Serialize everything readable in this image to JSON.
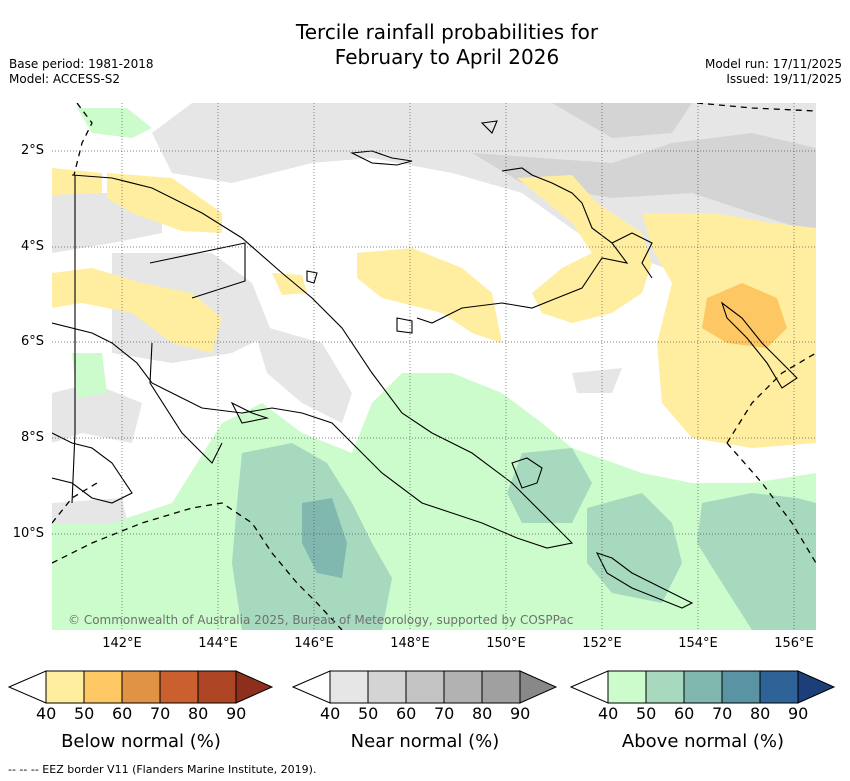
{
  "title_line1": "Tercile rainfall probabilities for",
  "title_line2": "February to April 2026",
  "base_period": "Base period: 1981-2018",
  "model": "Model: ACCESS-S2",
  "model_run": "Model run: 17/11/2025",
  "issued": "Issued: 19/11/2025",
  "lat_labels": [
    "2°S",
    "4°S",
    "6°S",
    "8°S",
    "10°S"
  ],
  "lon_labels": [
    "142°E",
    "144°E",
    "146°E",
    "148°E",
    "150°E",
    "152°E",
    "154°E",
    "156°E"
  ],
  "copyright": "© Commonwealth of Australia 2025, Bureau of Meteorology, supported by COSPPac",
  "colorbars": [
    {
      "title": "Below normal (%)",
      "ticks": [
        "40",
        "50",
        "60",
        "70",
        "80",
        "90"
      ],
      "colors": [
        "#ffeea0",
        "#fdc864",
        "#e09344",
        "#c9602d",
        "#ad4424",
        "#8c2f1c"
      ]
    },
    {
      "title": "Near normal (%)",
      "ticks": [
        "40",
        "50",
        "60",
        "70",
        "80",
        "90"
      ],
      "colors": [
        "#e6e6e6",
        "#d4d4d4",
        "#c3c3c3",
        "#b2b2b2",
        "#a0a0a0",
        "#888888"
      ]
    },
    {
      "title": "Above normal (%)",
      "ticks": [
        "40",
        "50",
        "60",
        "70",
        "80",
        "90"
      ],
      "colors": [
        "#ccfccc",
        "#a7d9bf",
        "#80b8b0",
        "#5a93a2",
        "#2f6296",
        "#1c3f7a"
      ]
    }
  ],
  "footnote": "-- -- -- EEZ border V11 (Flanders Marine Institute, 2019).",
  "colors": {
    "coast": "#000000",
    "grid": "#555555"
  }
}
